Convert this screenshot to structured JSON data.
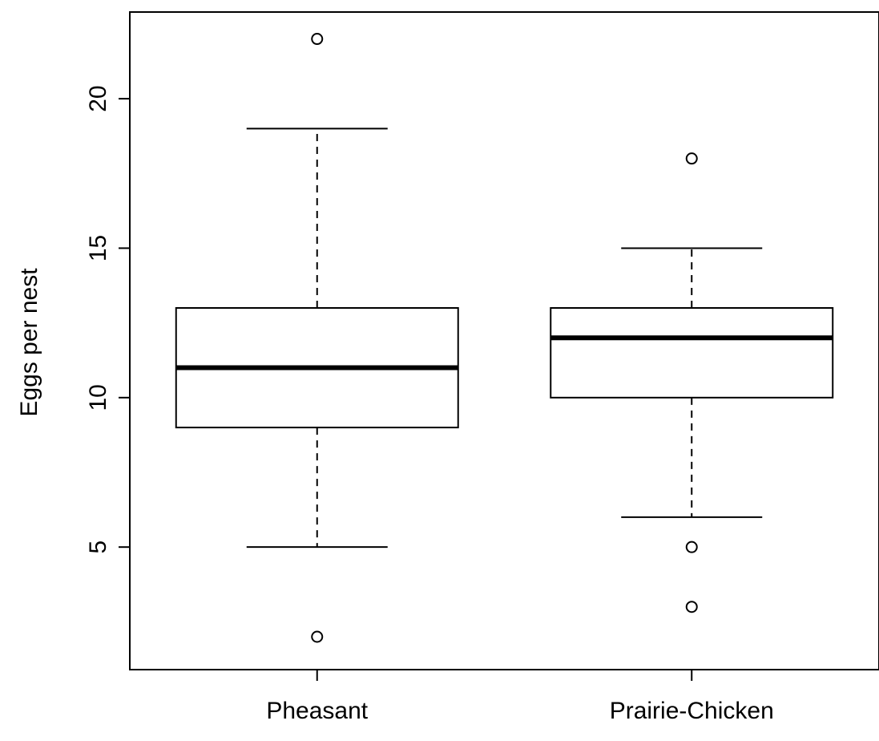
{
  "chart_data": {
    "type": "boxplot",
    "title": "",
    "xlabel": "",
    "ylabel": "Eggs per nest",
    "categories": [
      "Pheasant",
      "Prairie-Chicken"
    ],
    "ylim": [
      0.9,
      22.9
    ],
    "yticks": [
      5,
      10,
      15,
      20
    ],
    "boxes": [
      {
        "category": "Pheasant",
        "whisker_low": 5,
        "q1": 9,
        "median": 11,
        "q3": 13,
        "whisker_high": 19,
        "outliers": [
          2,
          22
        ]
      },
      {
        "category": "Prairie-Chicken",
        "whisker_low": 6,
        "q1": 10,
        "median": 12,
        "q3": 13,
        "whisker_high": 15,
        "outliers": [
          3,
          5,
          18
        ]
      }
    ],
    "grid": false,
    "legend": "none",
    "colors": {
      "stroke": "#000000",
      "box_fill": "#ffffff",
      "background": "#ffffff"
    }
  }
}
